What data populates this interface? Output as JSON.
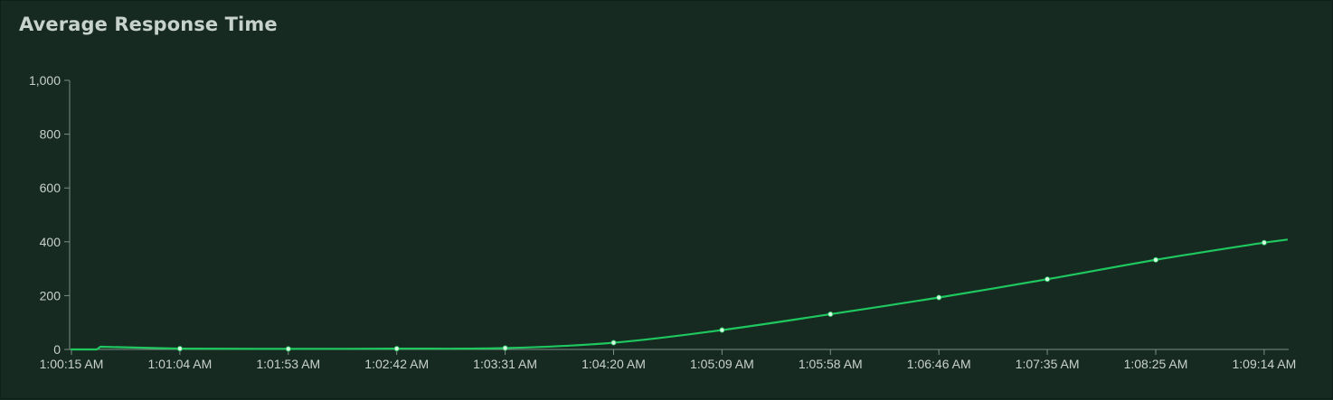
{
  "panel": {
    "title": "Average Response Time"
  },
  "chart_data": {
    "type": "line",
    "title": "Average Response Time",
    "xlabel": "",
    "ylabel": "",
    "ylim": [
      0,
      1000
    ],
    "y_ticks": [
      "0",
      "200",
      "400",
      "600",
      "800",
      "1,000"
    ],
    "y_tick_values": [
      0,
      200,
      400,
      600,
      800,
      1000
    ],
    "x_ticks": [
      "1:00:15 AM",
      "1:01:04 AM",
      "1:01:53 AM",
      "1:02:42 AM",
      "1:03:31 AM",
      "1:04:20 AM",
      "1:05:09 AM",
      "1:05:58 AM",
      "1:06:46 AM",
      "1:07:35 AM",
      "1:08:25 AM",
      "1:09:14 AM"
    ],
    "grid": false,
    "line_color": "#1fc75f",
    "marker_color": "#d8f5e0",
    "series": [
      {
        "values": [
          0,
          3,
          2,
          3,
          5,
          25,
          72,
          131,
          193,
          261,
          333,
          397
        ],
        "marker_indices": [
          1,
          2,
          3,
          4,
          5,
          6,
          7,
          8,
          9,
          10,
          11
        ],
        "end_value": 408,
        "spike_value": 10
      }
    ]
  }
}
